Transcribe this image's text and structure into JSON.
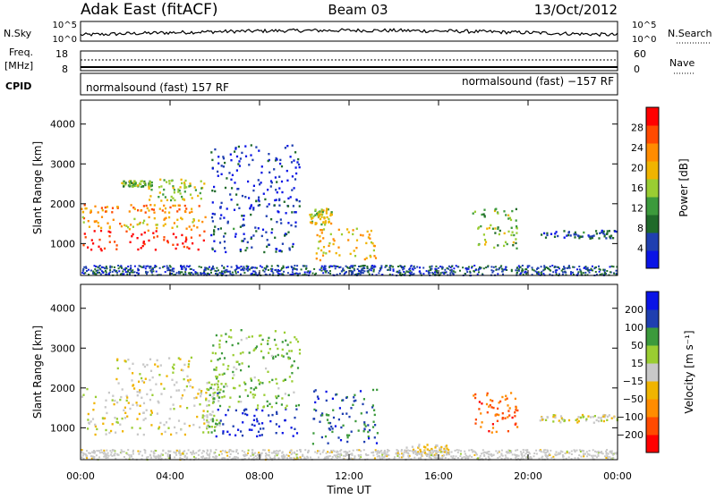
{
  "header": {
    "station": "Adak East (fitACF)",
    "beam": "Beam 03",
    "date": "13/Oct/2012"
  },
  "strip1": {
    "left_label": "N.Sky",
    "right_label": "N.Search",
    "left_ticks": [
      "10^5",
      "10^0"
    ],
    "right_ticks": [
      "10^5",
      "10^0"
    ]
  },
  "strip2": {
    "left_label_1": "Freq.",
    "left_label_2": "[MHz]",
    "right_label": "Nave",
    "left_ticks": [
      "18",
      "8"
    ],
    "right_ticks": [
      "60",
      "0"
    ]
  },
  "cpid": {
    "label": "CPID",
    "left_text": "normalsound (fast) 157 RF",
    "right_text": "normalsound (fast) −157 RF"
  },
  "colors": {
    "power": [
      "#0a14e6",
      "#1f3fb0",
      "#1f6a2a",
      "#3c9a3c",
      "#9acd32",
      "#f0b400",
      "#ff8c00",
      "#ff4a00",
      "#ff0000"
    ],
    "velocity": [
      "#ff0000",
      "#ff4a00",
      "#ff8c00",
      "#f0b400",
      "#c8c8c8",
      "#9acd32",
      "#3c9a3c",
      "#1f3fb0",
      "#0a14e6"
    ]
  },
  "chart_data": [
    {
      "type": "heatmap",
      "panel": "power",
      "xlabel": "",
      "ylabel": "Slant Range [km]",
      "x_ticks": [
        "00:00",
        "04:00",
        "08:00",
        "12:00",
        "16:00",
        "20:00",
        "00:00"
      ],
      "y_ticks": [
        "1000",
        "2000",
        "3000",
        "4000"
      ],
      "ylim": [
        200,
        4600
      ],
      "xlim_hours": [
        0,
        24
      ],
      "colorbar_label": "Power [dB]",
      "colorbar_ticks": [
        "28",
        "24",
        "20",
        "16",
        "12",
        "8",
        "4"
      ],
      "clim": [
        0,
        32
      ],
      "regions": [
        {
          "t": [
            0,
            5.7
          ],
          "r": [
            850,
            1350
          ],
          "val": 30
        },
        {
          "t": [
            0,
            5.6
          ],
          "r": [
            1350,
            1700
          ],
          "val": 20
        },
        {
          "t": [
            0,
            5.5
          ],
          "r": [
            1800,
            2000
          ],
          "val": 24
        },
        {
          "t": [
            3,
            5.5
          ],
          "r": [
            2100,
            2650
          ],
          "val": 16
        },
        {
          "t": [
            1.8,
            3.2
          ],
          "r": [
            2450,
            2600
          ],
          "val": 14
        },
        {
          "t": [
            5.8,
            9.5
          ],
          "r": [
            800,
            1400
          ],
          "val": 6
        },
        {
          "t": [
            5.8,
            9.8
          ],
          "r": [
            1400,
            3500
          ],
          "val": 4
        },
        {
          "t": [
            10.2,
            11.2
          ],
          "r": [
            1500,
            1900
          ],
          "val": 18
        },
        {
          "t": [
            10.5,
            13.2
          ],
          "r": [
            600,
            1400
          ],
          "val": 20
        },
        {
          "t": [
            17.5,
            19.5
          ],
          "r": [
            900,
            1900
          ],
          "val": 14
        },
        {
          "t": [
            20.5,
            24
          ],
          "r": [
            1150,
            1350
          ],
          "val": 6
        }
      ]
    },
    {
      "type": "heatmap",
      "panel": "velocity",
      "xlabel": "Time UT",
      "ylabel": "Slant Range [km]",
      "x_ticks": [
        "00:00",
        "04:00",
        "08:00",
        "12:00",
        "16:00",
        "20:00",
        "00:00"
      ],
      "y_ticks": [
        "1000",
        "2000",
        "3000",
        "4000"
      ],
      "ylim": [
        200,
        4600
      ],
      "xlim_hours": [
        0,
        24
      ],
      "colorbar_label": "Velocity [m s⁻¹]",
      "colorbar_ticks": [
        "200",
        "100",
        "50",
        "15",
        "−15",
        "−50",
        "−100",
        "−200"
      ],
      "clim": [
        -250,
        250
      ],
      "regions": [
        {
          "t": [
            0,
            5.7
          ],
          "r": [
            850,
            2000
          ],
          "val": 0
        },
        {
          "t": [
            1.5,
            5
          ],
          "r": [
            2000,
            2800
          ],
          "val": 0
        },
        {
          "t": [
            5.6,
            6.2
          ],
          "r": [
            900,
            2200
          ],
          "val": 40
        },
        {
          "t": [
            6,
            9.8
          ],
          "r": [
            800,
            1500
          ],
          "val": 200
        },
        {
          "t": [
            5.8,
            9.8
          ],
          "r": [
            1500,
            3500
          ],
          "val": 80
        },
        {
          "t": [
            10.3,
            13.3
          ],
          "r": [
            600,
            2000
          ],
          "val": 150
        },
        {
          "t": [
            14.5,
            16.5
          ],
          "r": [
            300,
            600
          ],
          "val": -30
        },
        {
          "t": [
            17.5,
            19.5
          ],
          "r": [
            900,
            1900
          ],
          "val": -150
        },
        {
          "t": [
            20.5,
            24
          ],
          "r": [
            1150,
            1350
          ],
          "val": 0
        }
      ]
    }
  ]
}
